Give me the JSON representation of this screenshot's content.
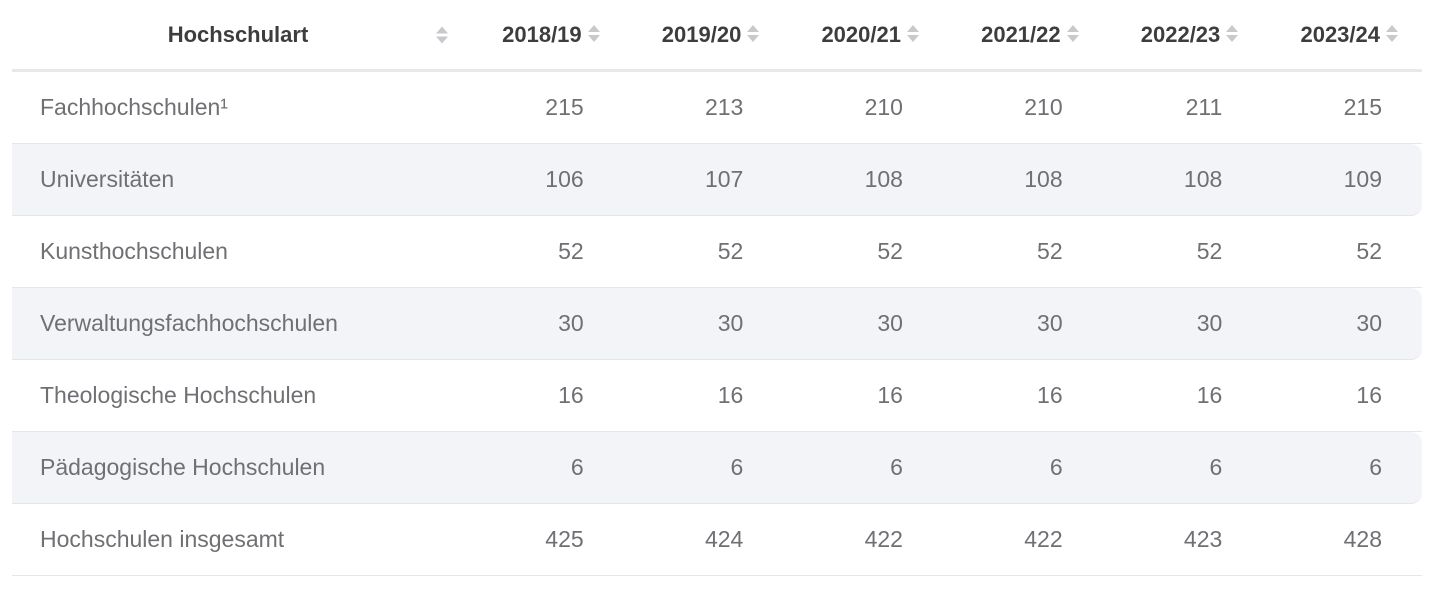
{
  "chart_data": {
    "type": "table",
    "columns": [
      "Hochschulart",
      "2018/19",
      "2019/20",
      "2020/21",
      "2021/22",
      "2022/23",
      "2023/24"
    ],
    "rows": [
      [
        "Fachhochschulen¹",
        215,
        213,
        210,
        210,
        211,
        215
      ],
      [
        "Universitäten",
        106,
        107,
        108,
        108,
        108,
        109
      ],
      [
        "Kunsthochschulen",
        52,
        52,
        52,
        52,
        52,
        52
      ],
      [
        "Verwaltungsfachhochschulen",
        30,
        30,
        30,
        30,
        30,
        30
      ],
      [
        "Theologische Hochschulen",
        16,
        16,
        16,
        16,
        16,
        16
      ],
      [
        "Pädagogische Hochschulen",
        6,
        6,
        6,
        6,
        6,
        6
      ],
      [
        "Hochschulen insgesamt",
        425,
        424,
        422,
        422,
        423,
        428
      ]
    ],
    "sortable": true,
    "striped": true,
    "legend_position": "none",
    "grid": "horizontal-row-separators"
  },
  "theme": {
    "header_text_color": "#3d3d3f",
    "body_text_color": "#6f7074",
    "stripe_color": "#f3f4f7",
    "separator_color": "#e5e6e8",
    "header_border_color": "#e8e8ea",
    "sort_icon_color": "#c7c9cc",
    "background": "#ffffff"
  }
}
